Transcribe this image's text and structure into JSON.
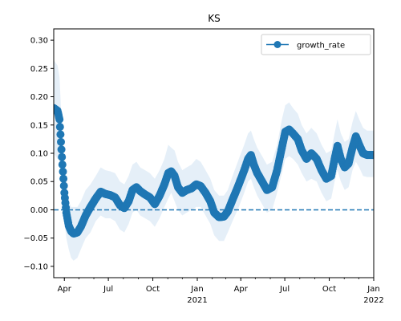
{
  "chart_data": {
    "type": "line",
    "title": "KS",
    "xlabel": "",
    "ylabel": "",
    "xlim": [
      "2020-03-10",
      "2022-01-01"
    ],
    "ylim": [
      -0.12,
      0.32
    ],
    "y_ticks": [
      -0.1,
      -0.05,
      0.0,
      0.05,
      0.1,
      0.15,
      0.2,
      0.25,
      0.3
    ],
    "y_tick_labels": [
      "−0.10",
      "−0.05",
      "0.00",
      "0.05",
      "0.10",
      "0.15",
      "0.20",
      "0.25",
      "0.30"
    ],
    "x_ticks": [
      {
        "date": "2020-04-01",
        "label": "Apr",
        "sublabel": ""
      },
      {
        "date": "2020-07-01",
        "label": "Jul",
        "sublabel": ""
      },
      {
        "date": "2020-10-01",
        "label": "Oct",
        "sublabel": ""
      },
      {
        "date": "2021-01-01",
        "label": "Jan",
        "sublabel": "2021"
      },
      {
        "date": "2021-04-01",
        "label": "Apr",
        "sublabel": ""
      },
      {
        "date": "2021-07-01",
        "label": "Jul",
        "sublabel": ""
      },
      {
        "date": "2021-10-01",
        "label": "Oct",
        "sublabel": ""
      },
      {
        "date": "2022-01-01",
        "label": "Jan",
        "sublabel": "2022"
      }
    ],
    "reference_line": {
      "y": 0.0,
      "style": "dashed",
      "color": "#1f77b4"
    },
    "series": [
      {
        "name": "growth_rate",
        "color": "#1f77b4",
        "marker": "circle",
        "band_color": "#c6dbef",
        "points": [
          {
            "x": "2020-03-10",
            "y": 0.18,
            "lo": 0.1,
            "hi": 0.265
          },
          {
            "x": "2020-03-18",
            "y": 0.175,
            "lo": 0.09,
            "hi": 0.255
          },
          {
            "x": "2020-03-22",
            "y": 0.16,
            "lo": 0.09,
            "hi": 0.235
          },
          {
            "x": "2020-03-25",
            "y": 0.12,
            "lo": 0.06,
            "hi": 0.18
          },
          {
            "x": "2020-03-28",
            "y": 0.08,
            "lo": 0.03,
            "hi": 0.13
          },
          {
            "x": "2020-04-01",
            "y": 0.03,
            "lo": -0.02,
            "hi": 0.08
          },
          {
            "x": "2020-04-05",
            "y": -0.005,
            "lo": -0.05,
            "hi": 0.04
          },
          {
            "x": "2020-04-10",
            "y": -0.028,
            "lo": -0.07,
            "hi": 0.015
          },
          {
            "x": "2020-04-15",
            "y": -0.038,
            "lo": -0.085,
            "hi": 0.005
          },
          {
            "x": "2020-04-20",
            "y": -0.042,
            "lo": -0.09,
            "hi": 0.005
          },
          {
            "x": "2020-04-28",
            "y": -0.04,
            "lo": -0.085,
            "hi": 0.005
          },
          {
            "x": "2020-05-05",
            "y": -0.03,
            "lo": -0.07,
            "hi": 0.015
          },
          {
            "x": "2020-05-15",
            "y": -0.01,
            "lo": -0.05,
            "hi": 0.035
          },
          {
            "x": "2020-05-25",
            "y": 0.005,
            "lo": -0.04,
            "hi": 0.045
          },
          {
            "x": "2020-06-05",
            "y": 0.02,
            "lo": -0.02,
            "hi": 0.06
          },
          {
            "x": "2020-06-15",
            "y": 0.032,
            "lo": -0.01,
            "hi": 0.075
          },
          {
            "x": "2020-06-25",
            "y": 0.028,
            "lo": -0.015,
            "hi": 0.07
          },
          {
            "x": "2020-07-05",
            "y": 0.026,
            "lo": -0.015,
            "hi": 0.068
          },
          {
            "x": "2020-07-15",
            "y": 0.022,
            "lo": -0.02,
            "hi": 0.065
          },
          {
            "x": "2020-07-25",
            "y": 0.008,
            "lo": -0.035,
            "hi": 0.05
          },
          {
            "x": "2020-08-03",
            "y": 0.003,
            "lo": -0.04,
            "hi": 0.045
          },
          {
            "x": "2020-08-12",
            "y": 0.015,
            "lo": -0.025,
            "hi": 0.06
          },
          {
            "x": "2020-08-20",
            "y": 0.035,
            "lo": -0.005,
            "hi": 0.08
          },
          {
            "x": "2020-08-28",
            "y": 0.04,
            "lo": 0.0,
            "hi": 0.085
          },
          {
            "x": "2020-09-05",
            "y": 0.033,
            "lo": -0.01,
            "hi": 0.075
          },
          {
            "x": "2020-09-15",
            "y": 0.027,
            "lo": -0.015,
            "hi": 0.07
          },
          {
            "x": "2020-09-25",
            "y": 0.022,
            "lo": -0.02,
            "hi": 0.065
          },
          {
            "x": "2020-10-05",
            "y": 0.01,
            "lo": -0.03,
            "hi": 0.055
          },
          {
            "x": "2020-10-15",
            "y": 0.025,
            "lo": -0.015,
            "hi": 0.07
          },
          {
            "x": "2020-10-25",
            "y": 0.045,
            "lo": 0.005,
            "hi": 0.09
          },
          {
            "x": "2020-11-02",
            "y": 0.065,
            "lo": 0.02,
            "hi": 0.115
          },
          {
            "x": "2020-11-08",
            "y": 0.068,
            "lo": 0.03,
            "hi": 0.11
          },
          {
            "x": "2020-11-15",
            "y": 0.06,
            "lo": 0.015,
            "hi": 0.105
          },
          {
            "x": "2020-11-22",
            "y": 0.04,
            "lo": 0.0,
            "hi": 0.085
          },
          {
            "x": "2020-12-01",
            "y": 0.03,
            "lo": -0.01,
            "hi": 0.07
          },
          {
            "x": "2020-12-10",
            "y": 0.035,
            "lo": -0.005,
            "hi": 0.075
          },
          {
            "x": "2020-12-20",
            "y": 0.038,
            "lo": 0.0,
            "hi": 0.08
          },
          {
            "x": "2020-12-30",
            "y": 0.045,
            "lo": 0.005,
            "hi": 0.09
          },
          {
            "x": "2021-01-08",
            "y": 0.042,
            "lo": 0.005,
            "hi": 0.085
          },
          {
            "x": "2021-01-18",
            "y": 0.03,
            "lo": -0.01,
            "hi": 0.07
          },
          {
            "x": "2021-01-28",
            "y": 0.015,
            "lo": -0.025,
            "hi": 0.055
          },
          {
            "x": "2021-02-05",
            "y": -0.005,
            "lo": -0.045,
            "hi": 0.035
          },
          {
            "x": "2021-02-15",
            "y": -0.013,
            "lo": -0.055,
            "hi": 0.025
          },
          {
            "x": "2021-02-25",
            "y": -0.012,
            "lo": -0.055,
            "hi": 0.025
          },
          {
            "x": "2021-03-05",
            "y": -0.003,
            "lo": -0.04,
            "hi": 0.035
          },
          {
            "x": "2021-03-15",
            "y": 0.018,
            "lo": -0.02,
            "hi": 0.06
          },
          {
            "x": "2021-03-28",
            "y": 0.045,
            "lo": 0.005,
            "hi": 0.09
          },
          {
            "x": "2021-04-08",
            "y": 0.07,
            "lo": 0.03,
            "hi": 0.115
          },
          {
            "x": "2021-04-16",
            "y": 0.09,
            "lo": 0.05,
            "hi": 0.135
          },
          {
            "x": "2021-04-22",
            "y": 0.097,
            "lo": 0.055,
            "hi": 0.14
          },
          {
            "x": "2021-04-28",
            "y": 0.08,
            "lo": 0.04,
            "hi": 0.125
          },
          {
            "x": "2021-05-05",
            "y": 0.065,
            "lo": 0.025,
            "hi": 0.11
          },
          {
            "x": "2021-05-15",
            "y": 0.05,
            "lo": 0.01,
            "hi": 0.095
          },
          {
            "x": "2021-05-25",
            "y": 0.035,
            "lo": -0.005,
            "hi": 0.08
          },
          {
            "x": "2021-06-05",
            "y": 0.04,
            "lo": 0.0,
            "hi": 0.085
          },
          {
            "x": "2021-06-15",
            "y": 0.07,
            "lo": 0.03,
            "hi": 0.115
          },
          {
            "x": "2021-06-25",
            "y": 0.11,
            "lo": 0.065,
            "hi": 0.16
          },
          {
            "x": "2021-07-02",
            "y": 0.138,
            "lo": 0.09,
            "hi": 0.185
          },
          {
            "x": "2021-07-10",
            "y": 0.142,
            "lo": 0.095,
            "hi": 0.19
          },
          {
            "x": "2021-07-18",
            "y": 0.135,
            "lo": 0.09,
            "hi": 0.18
          },
          {
            "x": "2021-07-28",
            "y": 0.125,
            "lo": 0.08,
            "hi": 0.17
          },
          {
            "x": "2021-08-05",
            "y": 0.105,
            "lo": 0.065,
            "hi": 0.15
          },
          {
            "x": "2021-08-15",
            "y": 0.09,
            "lo": 0.05,
            "hi": 0.135
          },
          {
            "x": "2021-08-25",
            "y": 0.1,
            "lo": 0.055,
            "hi": 0.145
          },
          {
            "x": "2021-09-05",
            "y": 0.09,
            "lo": 0.05,
            "hi": 0.135
          },
          {
            "x": "2021-09-15",
            "y": 0.07,
            "lo": 0.03,
            "hi": 0.115
          },
          {
            "x": "2021-09-25",
            "y": 0.055,
            "lo": 0.015,
            "hi": 0.1
          },
          {
            "x": "2021-10-05",
            "y": 0.06,
            "lo": 0.02,
            "hi": 0.105
          },
          {
            "x": "2021-10-12",
            "y": 0.09,
            "lo": 0.05,
            "hi": 0.135
          },
          {
            "x": "2021-10-18",
            "y": 0.113,
            "lo": 0.07,
            "hi": 0.16
          },
          {
            "x": "2021-10-25",
            "y": 0.09,
            "lo": 0.05,
            "hi": 0.135
          },
          {
            "x": "2021-11-02",
            "y": 0.075,
            "lo": 0.035,
            "hi": 0.12
          },
          {
            "x": "2021-11-10",
            "y": 0.082,
            "lo": 0.04,
            "hi": 0.125
          },
          {
            "x": "2021-11-18",
            "y": 0.11,
            "lo": 0.07,
            "hi": 0.155
          },
          {
            "x": "2021-11-25",
            "y": 0.13,
            "lo": 0.085,
            "hi": 0.175
          },
          {
            "x": "2021-12-02",
            "y": 0.115,
            "lo": 0.075,
            "hi": 0.16
          },
          {
            "x": "2021-12-10",
            "y": 0.1,
            "lo": 0.06,
            "hi": 0.145
          },
          {
            "x": "2021-12-18",
            "y": 0.097,
            "lo": 0.058,
            "hi": 0.14
          },
          {
            "x": "2022-01-01",
            "y": 0.097,
            "lo": 0.058,
            "hi": 0.14
          }
        ]
      }
    ],
    "legend": {
      "position": "top-right",
      "entries": [
        "growth_rate"
      ]
    },
    "grid": false
  }
}
